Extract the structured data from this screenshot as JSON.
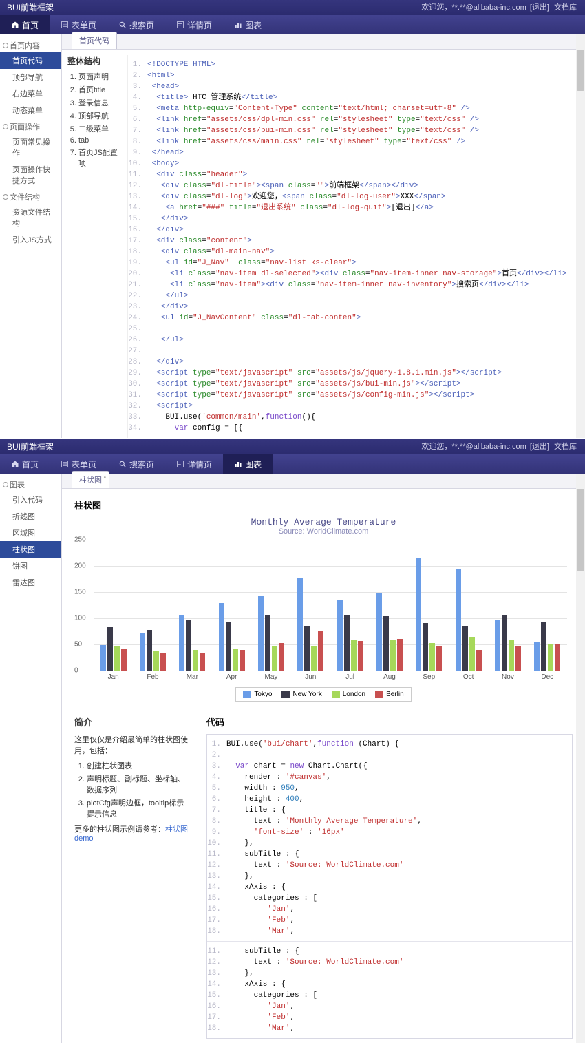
{
  "title": "BUI前端框架",
  "welcome": "欢迎您，**.**@alibaba-inc.com",
  "logout": "[退出]",
  "docs": "文档库",
  "navTabs": [
    {
      "icon": "home",
      "label": "首页"
    },
    {
      "icon": "form",
      "label": "表单页"
    },
    {
      "icon": "search",
      "label": "搜索页"
    },
    {
      "icon": "detail",
      "label": "详情页"
    },
    {
      "icon": "chart",
      "label": "图表"
    }
  ],
  "frame1": {
    "activeNav": 0,
    "subtab": "首页代码",
    "sidebar": [
      {
        "type": "group",
        "label": "首页内容"
      },
      {
        "type": "item",
        "label": "首页代码",
        "active": true
      },
      {
        "type": "item",
        "label": "顶部导航"
      },
      {
        "type": "item",
        "label": "右边菜单"
      },
      {
        "type": "item",
        "label": "动态菜单"
      },
      {
        "type": "group",
        "label": "页面操作"
      },
      {
        "type": "item",
        "label": "页面常见操作"
      },
      {
        "type": "item",
        "label": "页面操作快捷方式"
      },
      {
        "type": "group",
        "label": "文件结构"
      },
      {
        "type": "item",
        "label": "资源文件结构"
      },
      {
        "type": "item",
        "label": "引入JS方式"
      }
    ],
    "outlineTitle": "整体结构",
    "outline": [
      "页面声明",
      "首页title",
      "登录信息",
      "顶部导航",
      "二级菜单",
      "tab",
      "首页JS配置项"
    ],
    "codeLines": 34
  },
  "frame2": {
    "activeNav": 4,
    "subtab": "柱状图",
    "sidebarTitle": "图表",
    "sidebar": [
      {
        "label": "引入代码"
      },
      {
        "label": "折线图"
      },
      {
        "label": "区域图"
      },
      {
        "label": "柱状图",
        "active": true
      },
      {
        "label": "饼图"
      },
      {
        "label": "雷达图"
      }
    ],
    "heading": "柱状图",
    "chart": {
      "title": "Monthly Average Temperature",
      "subtitle": "Source: WorldClimate.com",
      "ymax": 250,
      "ystep": 50,
      "categories": [
        "Jan",
        "Feb",
        "Mar",
        "Apr",
        "May",
        "Jun",
        "Jul",
        "Aug",
        "Sep",
        "Oct",
        "Nov",
        "Dec"
      ],
      "series": [
        {
          "name": "Tokyo",
          "color": "#6a9de8",
          "data": [
            49,
            71,
            106,
            129,
            144,
            176,
            135,
            148,
            216,
            194,
            96,
            54
          ]
        },
        {
          "name": "New York",
          "color": "#3a3a4a",
          "data": [
            83,
            78,
            98,
            93,
            106,
            84,
            105,
            104,
            91,
            84,
            106,
            92
          ]
        },
        {
          "name": "London",
          "color": "#a6d85a",
          "data": [
            48,
            38,
            39,
            41,
            47,
            48,
            59,
            59,
            52,
            65,
            59,
            51
          ]
        },
        {
          "name": "Berlin",
          "color": "#c85050",
          "data": [
            42,
            33,
            34,
            39,
            52,
            75,
            57,
            60,
            47,
            39,
            46,
            51
          ]
        }
      ]
    },
    "introTitle": "简介",
    "introText": "这里仅仅是介绍最简单的柱状图使用，包括：",
    "introList": [
      "创建柱状图表",
      "声明标题、副标题、坐标轴、数据序列",
      "plotCfg声明边框，tooltip标示提示信息"
    ],
    "introFoot": "更多的柱状图示例请参考：",
    "introLink": "柱状图demo",
    "codeTitle": "代码",
    "codeLines1": 18,
    "codeLines2": 18
  },
  "colors": {
    "navDark": "#2b2b6f",
    "navActive": "#1f1f56",
    "sidebarActive": "#2d4b9a",
    "codeTag": "#4a5fb8",
    "codeAttr": "#2a8a2a",
    "codeStr": "#c03030"
  }
}
